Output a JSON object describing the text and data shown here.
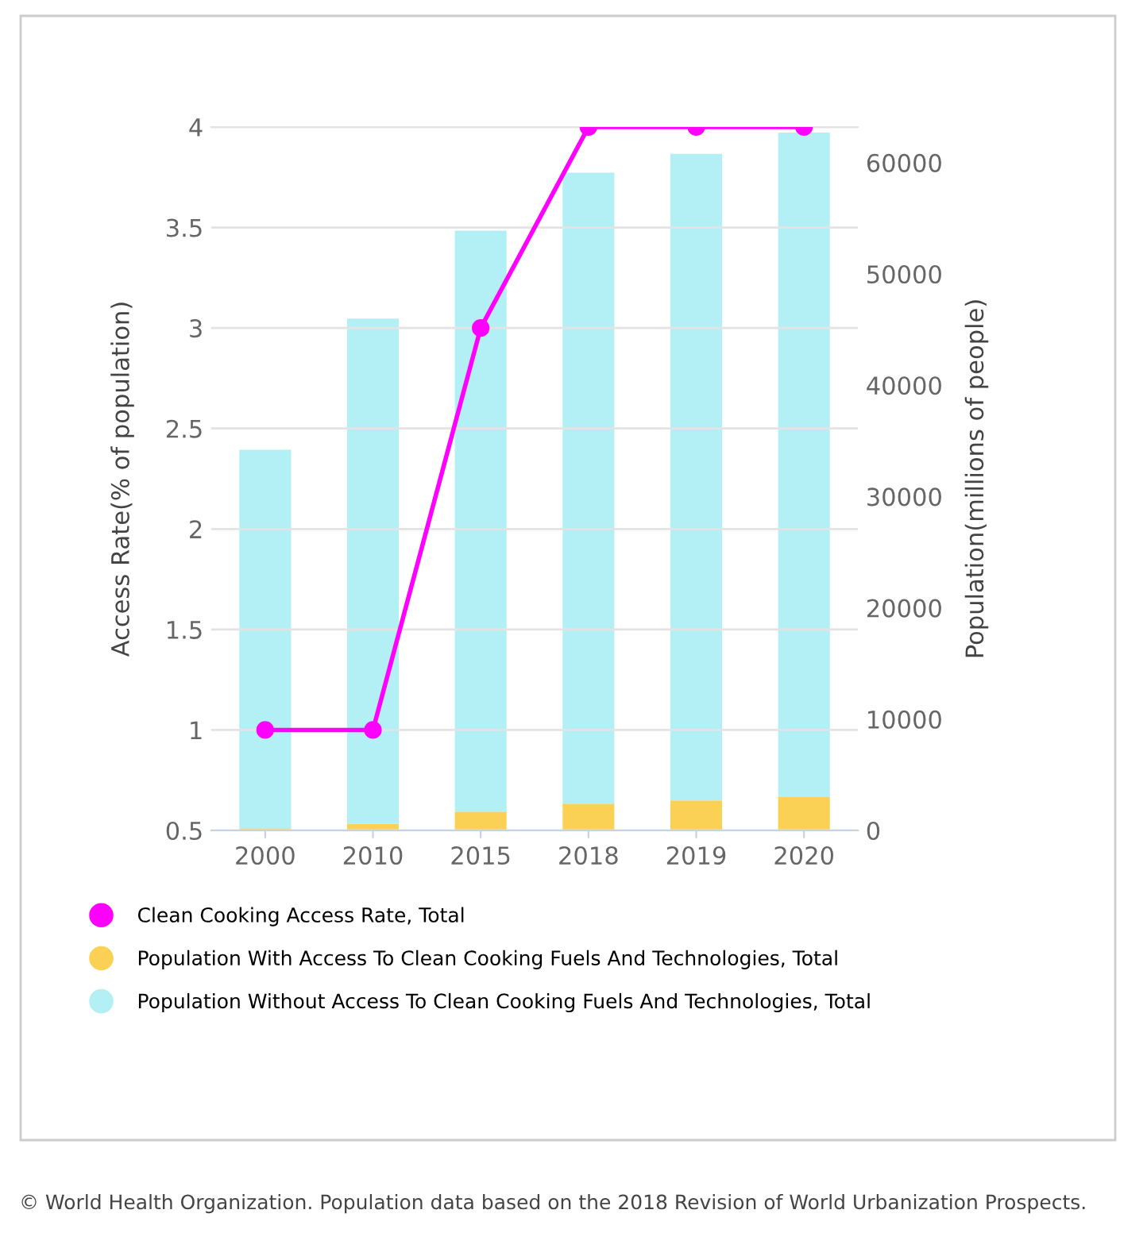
{
  "chart_data": {
    "type": "bar",
    "stacked": true,
    "categories": [
      "2000",
      "2010",
      "2015",
      "2018",
      "2019",
      "2020"
    ],
    "ylabel": "Access Rate(% of population)",
    "y2label": "Population(millions of people)",
    "ylim": [
      0.5,
      4
    ],
    "yticks": [
      0.5,
      1,
      1.5,
      2,
      2.5,
      3,
      3.5,
      4
    ],
    "y2lim": [
      0,
      63200
    ],
    "y2ticks": [
      0,
      10000,
      20000,
      30000,
      40000,
      50000,
      60000
    ],
    "series": [
      {
        "name": "Clean Cooking Access Rate, Total",
        "type": "line",
        "axis": "y",
        "color": "#ff00ff",
        "marker": "circle",
        "values": [
          1,
          1,
          3,
          4,
          4,
          4
        ]
      },
      {
        "name": "Population With Access To Clean Cooking Fuels And Technologies, Total",
        "axis": "y2",
        "color": "#fad154",
        "values": [
          200,
          600,
          1700,
          2400,
          2700,
          3000
        ]
      },
      {
        "name": "Population Without Access To Clean Cooking Fuels And Technologies, Total",
        "axis": "y2",
        "color": "#b3f0f5",
        "values": [
          34000,
          45400,
          52200,
          56700,
          58100,
          59700
        ]
      }
    ],
    "grid": "y",
    "legend": "bottom",
    "annotations": [
      "© World Health Organization. Population data based on the 2018 Revision of World Urbanization Prospects."
    ]
  }
}
